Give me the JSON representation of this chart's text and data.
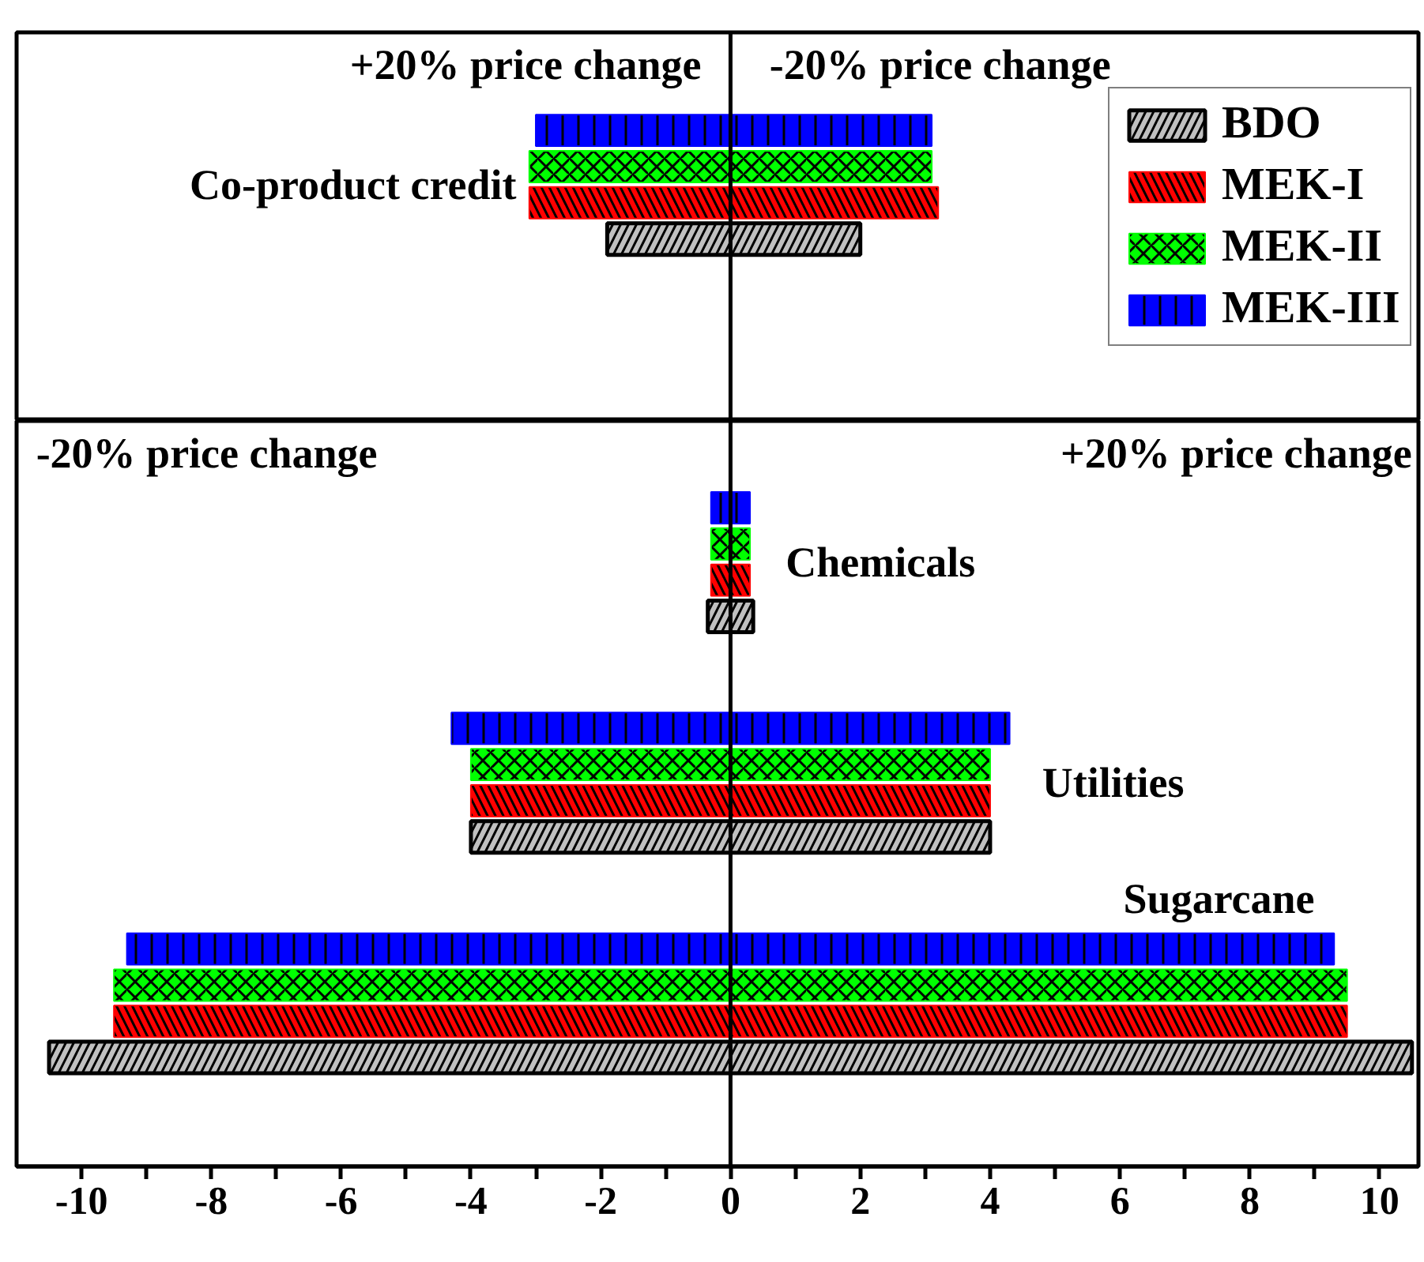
{
  "chart_data": [
    {
      "type": "bar",
      "orientation": "horizontal",
      "categories": [
        "Co-product credit"
      ],
      "xlim": [
        -11,
        10.6
      ],
      "tick_labels": false,
      "legend": "top right",
      "annotations": [
        "+20% price change",
        "-20% price change"
      ],
      "ref_lines": [
        {
          "axis": "x",
          "value": 0
        }
      ],
      "series": [
        {
          "name": "BDO",
          "color": "#c0c0c0",
          "base": [
            -1.9
          ],
          "values": [
            3.9
          ]
        },
        {
          "name": "MEK-I",
          "color": "#ff0000",
          "base": [
            -3.1
          ],
          "values": [
            6.3
          ]
        },
        {
          "name": "MEK-II",
          "color": "#00ff00",
          "base": [
            -3.1
          ],
          "values": [
            6.2
          ]
        },
        {
          "name": "MEK-III",
          "color": "#0000ff",
          "base": [
            -3.0
          ],
          "values": [
            6.1
          ]
        }
      ]
    },
    {
      "type": "bar",
      "orientation": "horizontal",
      "categories": [
        "Chemicals",
        "Utilities",
        "Sugarcane"
      ],
      "xlim": [
        -11,
        10.6
      ],
      "xticks": [
        -10,
        {
          "value": -9,
          "label": null
        },
        -8,
        {
          "value": -7,
          "label": null
        },
        -6,
        {
          "value": -5,
          "label": null
        },
        -4,
        {
          "value": -3,
          "label": null
        },
        -2,
        {
          "value": -1,
          "label": null
        },
        0,
        {
          "value": 1,
          "label": null
        },
        2,
        {
          "value": 3,
          "label": null
        },
        4,
        {
          "value": 5,
          "label": null
        },
        6,
        {
          "value": 7,
          "label": null
        },
        8,
        {
          "value": 9,
          "label": null
        },
        10
      ],
      "tick_labels": "x",
      "annotations": [
        "-20% price change",
        "+20% price change"
      ],
      "ref_lines": [
        {
          "axis": "x",
          "value": 0
        }
      ],
      "series": [
        {
          "color": "#c0c0c0",
          "base": [
            -0.35,
            -4.0,
            -10.5
          ],
          "values": [
            0.7,
            8.0,
            21.0
          ]
        },
        {
          "color": "#ff0000",
          "base": [
            -0.3,
            -4.0,
            -9.5
          ],
          "values": [
            0.6,
            8.0,
            19.0
          ]
        },
        {
          "color": "#00ff00",
          "base": [
            -0.3,
            -4.0,
            -9.5
          ],
          "values": [
            0.6,
            8.0,
            19.0
          ]
        },
        {
          "color": "#0000ff",
          "base": [
            -0.3,
            -4.3,
            -9.3
          ],
          "values": [
            0.6,
            8.6,
            18.6
          ]
        }
      ]
    }
  ]
}
